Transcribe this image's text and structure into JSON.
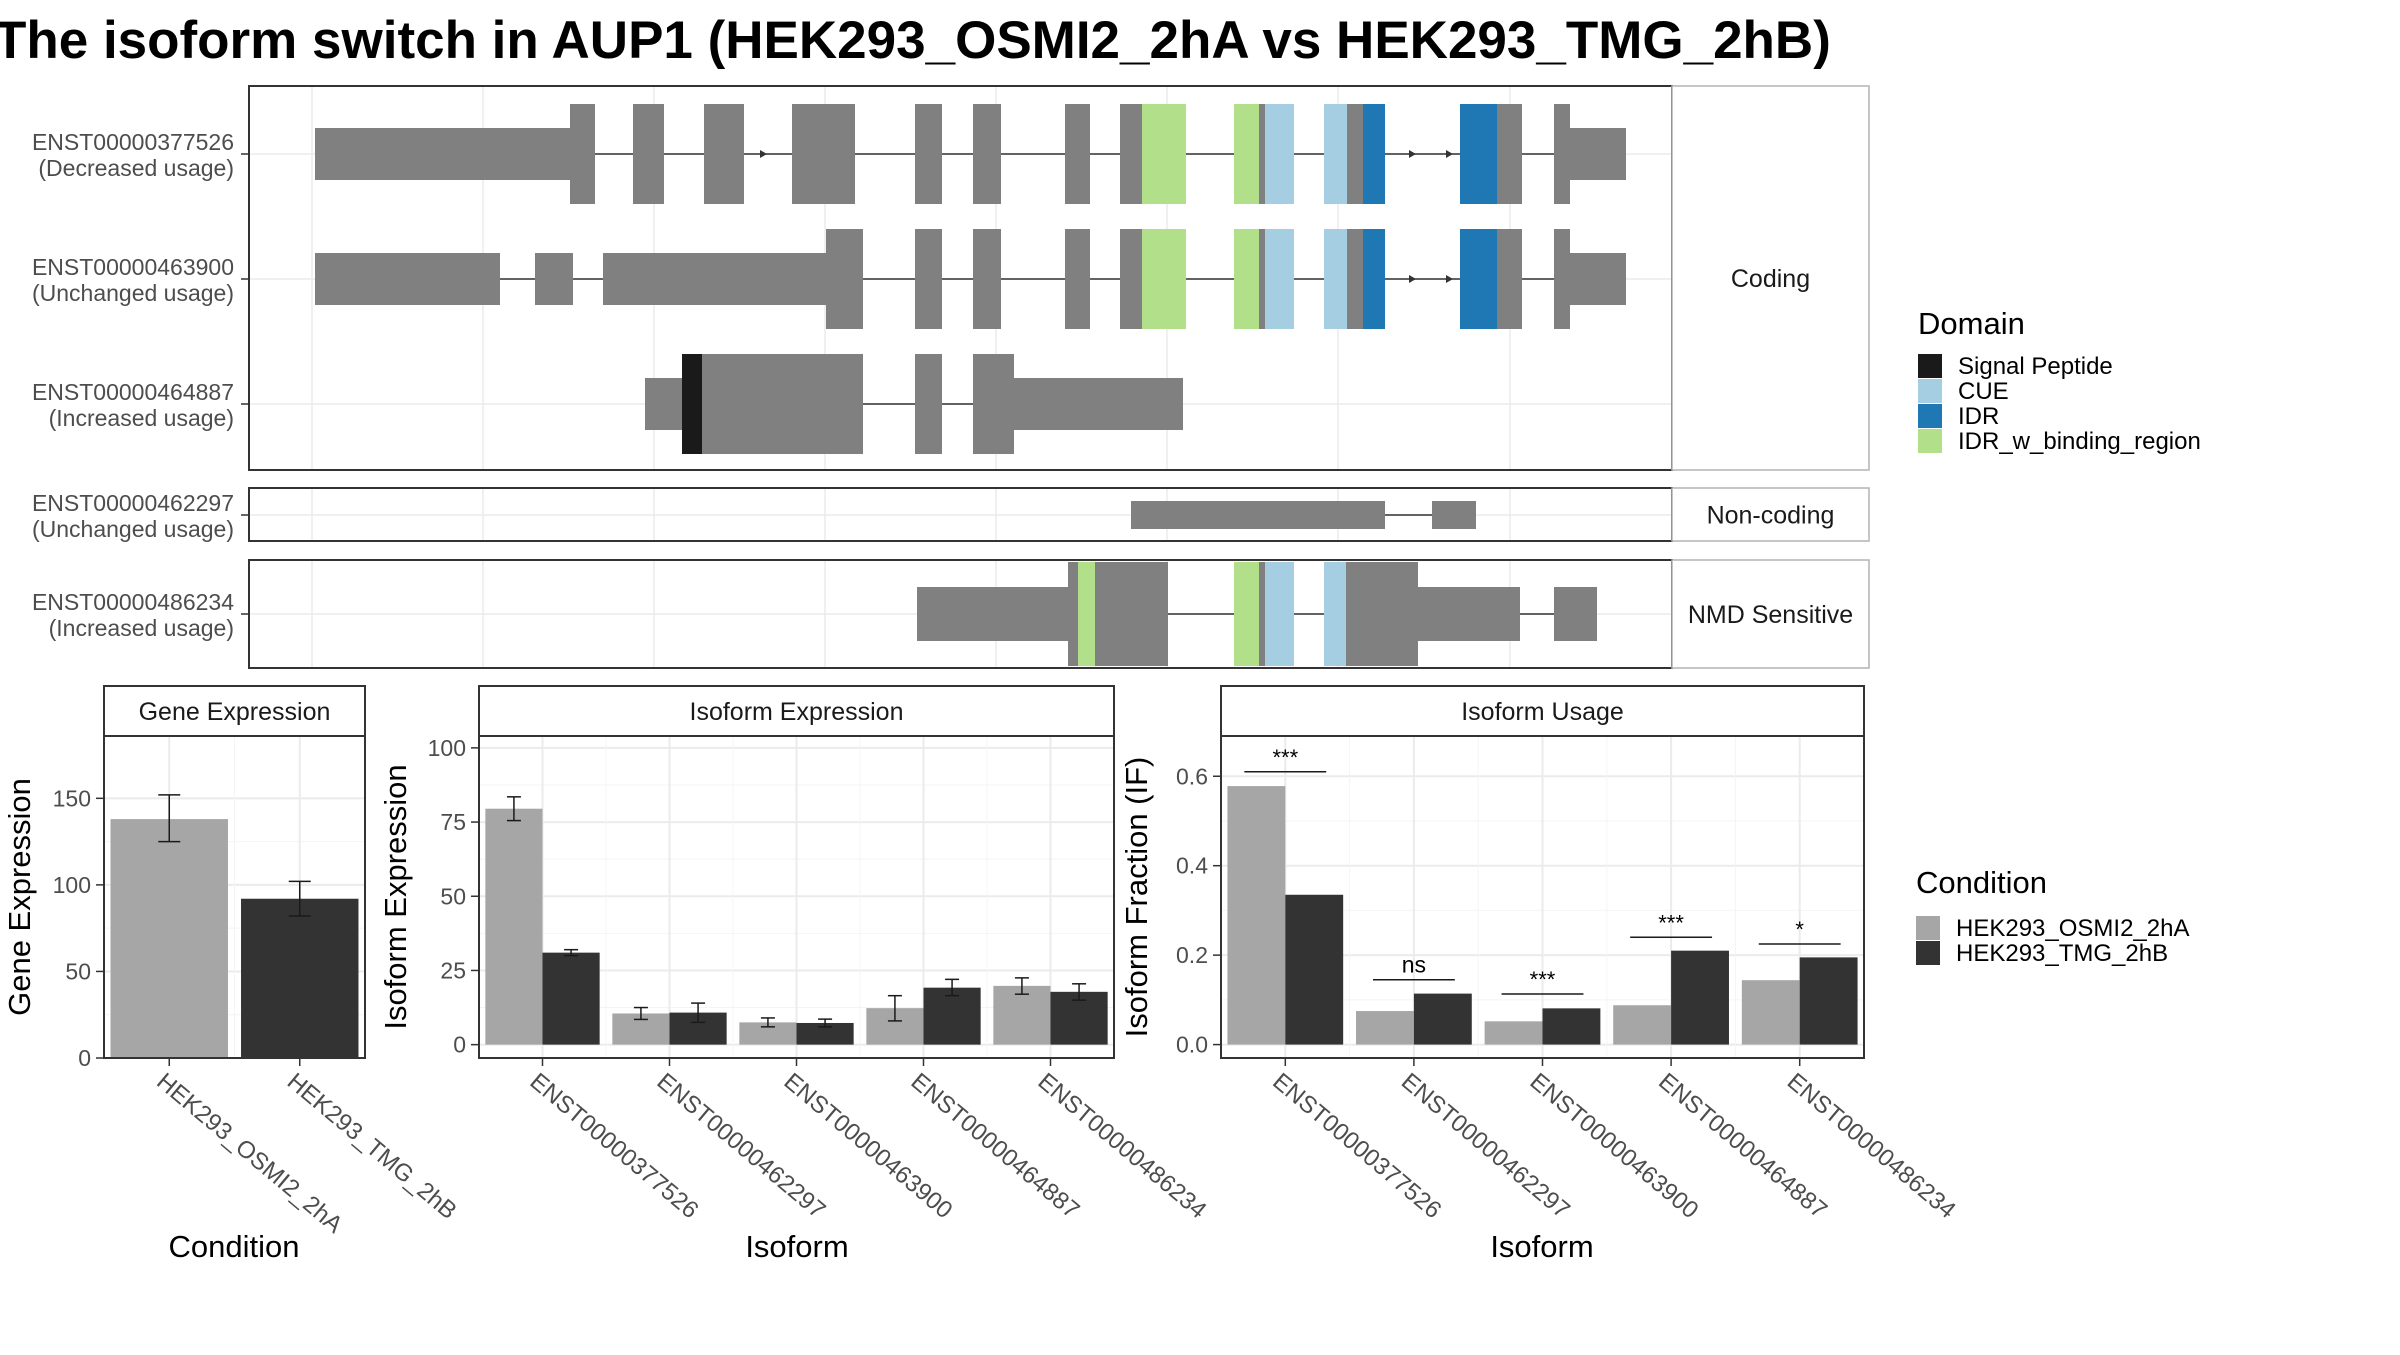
{
  "title": "The isoform switch in AUP1 (HEK293_OSMI2_2hA vs HEK293_TMG_2hB)",
  "colors": {
    "exon": "#808080",
    "signal_peptide": "#1a1a1a",
    "cue": "#a6cee3",
    "idr": "#1f78b4",
    "idr_w_binding_region": "#b2df8a",
    "cond_a": "#a6a6a6",
    "cond_b": "#333333"
  },
  "structure": {
    "groups": [
      {
        "label": "Coding",
        "isoforms": [
          {
            "id": "ENST00000377526",
            "usage": "(Decreased usage)",
            "exons": [
              [
                37,
                211
              ],
              [
                211,
                228
              ],
              [
                254,
                275
              ],
              [
                302,
                329
              ],
              [
                362,
                405
              ],
              [
                446,
                464
              ],
              [
                485,
                504
              ],
              [
                548,
                565
              ],
              [
                585,
                600
              ],
              [
                600,
                630
              ],
              [
                663,
                680
              ],
              [
                680,
                684
              ],
              [
                684,
                704
              ],
              [
                724,
                740
              ],
              [
                740,
                751
              ],
              [
                751,
                766
              ],
              [
                817,
                842
              ],
              [
                842,
                859
              ],
              [
                881,
                892
              ],
              [
                892,
                930
              ]
            ],
            "coding": [
              [
                211,
                228
              ],
              [
                254,
                275
              ],
              [
                302,
                329
              ],
              [
                362,
                405
              ],
              [
                446,
                464
              ],
              [
                485,
                504
              ],
              [
                548,
                565
              ],
              [
                585,
                600
              ],
              [
                600,
                630
              ],
              [
                663,
                680
              ],
              [
                680,
                684
              ],
              [
                684,
                704
              ],
              [
                724,
                740
              ],
              [
                740,
                751
              ],
              [
                751,
                766
              ],
              [
                817,
                842
              ],
              [
                842,
                859
              ],
              [
                881,
                892
              ]
            ],
            "domains": [
              {
                "d": "idr_w_binding_region",
                "s": 600,
                "e": 630
              },
              {
                "d": "idr_w_binding_region",
                "s": 663,
                "e": 680
              },
              {
                "d": "cue",
                "s": 684,
                "e": 704
              },
              {
                "d": "cue",
                "s": 724,
                "e": 740
              },
              {
                "d": "idr",
                "s": 751,
                "e": 766
              },
              {
                "d": "idr",
                "s": 817,
                "e": 842
              }
            ],
            "arrows": [
              345,
              787,
              812
            ]
          },
          {
            "id": "ENST00000463900",
            "usage": "(Unchanged usage)",
            "exons": [
              [
                37,
                163
              ],
              [
                187,
                213
              ],
              [
                233,
                385
              ],
              [
                385,
                410
              ],
              [
                446,
                464
              ],
              [
                485,
                504
              ],
              [
                548,
                565
              ],
              [
                585,
                600
              ],
              [
                600,
                630
              ],
              [
                663,
                680
              ],
              [
                680,
                684
              ],
              [
                684,
                704
              ],
              [
                724,
                740
              ],
              [
                740,
                751
              ],
              [
                751,
                766
              ],
              [
                817,
                842
              ],
              [
                842,
                859
              ],
              [
                881,
                892
              ],
              [
                892,
                930
              ]
            ],
            "coding": [
              [
                385,
                410
              ],
              [
                446,
                464
              ],
              [
                485,
                504
              ],
              [
                548,
                565
              ],
              [
                585,
                600
              ],
              [
                600,
                630
              ],
              [
                663,
                680
              ],
              [
                680,
                684
              ],
              [
                684,
                704
              ],
              [
                724,
                740
              ],
              [
                740,
                751
              ],
              [
                751,
                766
              ],
              [
                817,
                842
              ],
              [
                842,
                859
              ],
              [
                881,
                892
              ]
            ],
            "domains": [
              {
                "d": "idr_w_binding_region",
                "s": 600,
                "e": 630
              },
              {
                "d": "idr_w_binding_region",
                "s": 663,
                "e": 680
              },
              {
                "d": "cue",
                "s": 684,
                "e": 704
              },
              {
                "d": "cue",
                "s": 724,
                "e": 740
              },
              {
                "d": "idr",
                "s": 751,
                "e": 766
              },
              {
                "d": "idr",
                "s": 817,
                "e": 842
              }
            ],
            "arrows": [
              787,
              812
            ]
          },
          {
            "id": "ENST00000464887",
            "usage": "(Increased usage)",
            "exons": [
              [
                262,
                287
              ],
              [
                287,
                301
              ],
              [
                301,
                364
              ],
              [
                364,
                410
              ],
              [
                446,
                464
              ],
              [
                485,
                513
              ],
              [
                513,
                628
              ]
            ],
            "coding": [
              [
                287,
                301
              ],
              [
                301,
                364
              ],
              [
                364,
                410
              ],
              [
                446,
                464
              ],
              [
                485,
                513
              ]
            ],
            "domains": [
              {
                "d": "signal_peptide",
                "s": 287,
                "e": 301
              }
            ],
            "arrows": []
          }
        ]
      },
      {
        "label": "Non-coding",
        "isoforms": [
          {
            "id": "ENST00000462297",
            "usage": "(Unchanged usage)",
            "exons": [
              [
                593,
                766
              ],
              [
                798,
                828
              ]
            ],
            "coding": [],
            "domains": [],
            "arrows": []
          }
        ]
      },
      {
        "label": "NMD Sensitive",
        "isoforms": [
          {
            "id": "ENST00000486234",
            "usage": "(Increased usage)",
            "exons": [
              [
                447,
                550
              ],
              [
                550,
                618
              ],
              [
                663,
                704
              ],
              [
                724,
                739
              ],
              [
                739,
                788
              ],
              [
                788,
                858
              ],
              [
                881,
                910
              ]
            ],
            "coding": [
              [
                550,
                618
              ],
              [
                663,
                704
              ],
              [
                724,
                739
              ],
              [
                739,
                788
              ]
            ],
            "domains": [
              {
                "d": "idr_w_binding_region",
                "s": 557,
                "e": 568
              },
              {
                "d": "idr_w_binding_region",
                "s": 663,
                "e": 680
              },
              {
                "d": "cue",
                "s": 684,
                "e": 704
              },
              {
                "d": "cue",
                "s": 724,
                "e": 739
              }
            ],
            "arrows": []
          }
        ]
      }
    ]
  },
  "legend_domain": {
    "title": "Domain",
    "items": [
      {
        "label": "Signal Peptide",
        "key": "signal_peptide"
      },
      {
        "label": "CUE",
        "key": "cue"
      },
      {
        "label": "IDR",
        "key": "idr"
      },
      {
        "label": "IDR_w_binding_region",
        "key": "idr_w_binding_region"
      }
    ]
  },
  "legend_condition": {
    "title": "Condition",
    "items": [
      {
        "label": "HEK293_OSMI2_2hA",
        "key": "cond_a"
      },
      {
        "label": "HEK293_TMG_2hB",
        "key": "cond_b"
      }
    ]
  },
  "chart_data": [
    {
      "type": "bar",
      "title": "Gene Expression",
      "xlabel": "Condition",
      "ylabel": "Gene Expression",
      "categories": [
        "HEK293_OSMI2_2hA",
        "HEK293_TMG_2hB"
      ],
      "values": [
        138,
        92
      ],
      "error": [
        [
          125,
          152
        ],
        [
          82,
          102
        ]
      ],
      "ylim": [
        0,
        186
      ],
      "yticks": [
        0,
        50,
        100,
        150
      ]
    },
    {
      "type": "bar",
      "title": "Isoform Expression",
      "xlabel": "Isoform",
      "ylabel": "Isoform Expression",
      "categories": [
        "ENST00000377526",
        "ENST00000462297",
        "ENST00000463900",
        "ENST00000464887",
        "ENST00000486234"
      ],
      "series": [
        {
          "name": "HEK293_OSMI2_2hA",
          "values": [
            79.5,
            10.5,
            7.5,
            12.3,
            19.8
          ],
          "error": [
            [
              75.5,
              83.5
            ],
            [
              8.5,
              12.5
            ],
            [
              6,
              9
            ],
            [
              8,
              16.5
            ],
            [
              17,
              22.5
            ]
          ]
        },
        {
          "name": "HEK293_TMG_2hB",
          "values": [
            31,
            10.8,
            7.3,
            19.2,
            17.8
          ],
          "error": [
            [
              30,
              32
            ],
            [
              7.5,
              14
            ],
            [
              6,
              8.6
            ],
            [
              16.5,
              22
            ],
            [
              15,
              20.5
            ]
          ]
        }
      ],
      "ylim": [
        -4.5,
        104
      ],
      "yticks": [
        0,
        25,
        50,
        75,
        100
      ]
    },
    {
      "type": "bar",
      "title": "Isoform Usage",
      "xlabel": "Isoform",
      "ylabel": "Isoform Fraction (IF)",
      "categories": [
        "ENST00000377526",
        "ENST00000462297",
        "ENST00000463900",
        "ENST00000464887",
        "ENST00000486234"
      ],
      "series": [
        {
          "name": "HEK293_OSMI2_2hA",
          "values": [
            0.578,
            0.075,
            0.052,
            0.088,
            0.144
          ]
        },
        {
          "name": "HEK293_TMG_2hB",
          "values": [
            0.335,
            0.114,
            0.081,
            0.21,
            0.195
          ]
        }
      ],
      "significance": [
        "***",
        "ns",
        "***",
        "***",
        "*"
      ],
      "sig_levels": [
        0.61,
        0.145,
        0.113,
        0.24,
        0.225
      ],
      "ylim": [
        -0.03,
        0.69
      ],
      "yticks": [
        0.0,
        0.2,
        0.4,
        0.6
      ],
      "ytick_labels": [
        "0.0",
        "0.2",
        "0.4",
        "0.6"
      ]
    }
  ]
}
